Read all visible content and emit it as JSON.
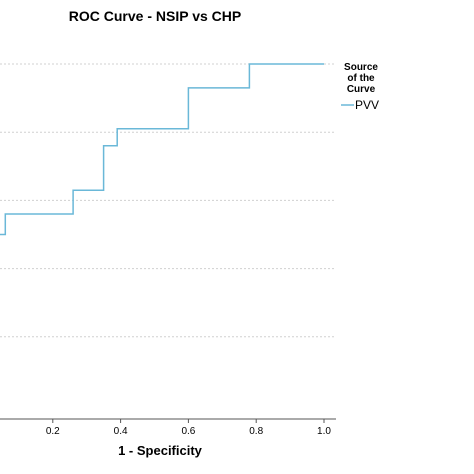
{
  "chart_data": {
    "type": "line",
    "title": "ROC Curve - NSIP vs CHP",
    "xlabel": "1 - Specificity",
    "ylabel": "",
    "xlim": [
      0.0,
      1.0
    ],
    "ylim": [
      0.0,
      1.0
    ],
    "x_ticks": [
      "0.2",
      "0.4",
      "0.6",
      "0.8",
      "1.0"
    ],
    "grid": "horizontal dotted",
    "line_color": "#6ab8d8",
    "grid_color": "#d0d0d0",
    "legend": {
      "title_lines": [
        "Source",
        "of the",
        "Curve"
      ],
      "position": "right",
      "entries": [
        {
          "name": "PVV",
          "color": "#6ab8d8"
        }
      ]
    },
    "series": [
      {
        "name": "PVV",
        "points": [
          [
            0.0,
            0.5
          ],
          [
            0.06,
            0.5
          ],
          [
            0.06,
            0.56
          ],
          [
            0.26,
            0.56
          ],
          [
            0.26,
            0.63
          ],
          [
            0.35,
            0.63
          ],
          [
            0.35,
            0.76
          ],
          [
            0.39,
            0.76
          ],
          [
            0.39,
            0.81
          ],
          [
            0.6,
            0.81
          ],
          [
            0.6,
            0.93
          ],
          [
            0.78,
            0.93
          ],
          [
            0.78,
            1.0
          ],
          [
            1.0,
            1.0
          ]
        ]
      }
    ]
  }
}
